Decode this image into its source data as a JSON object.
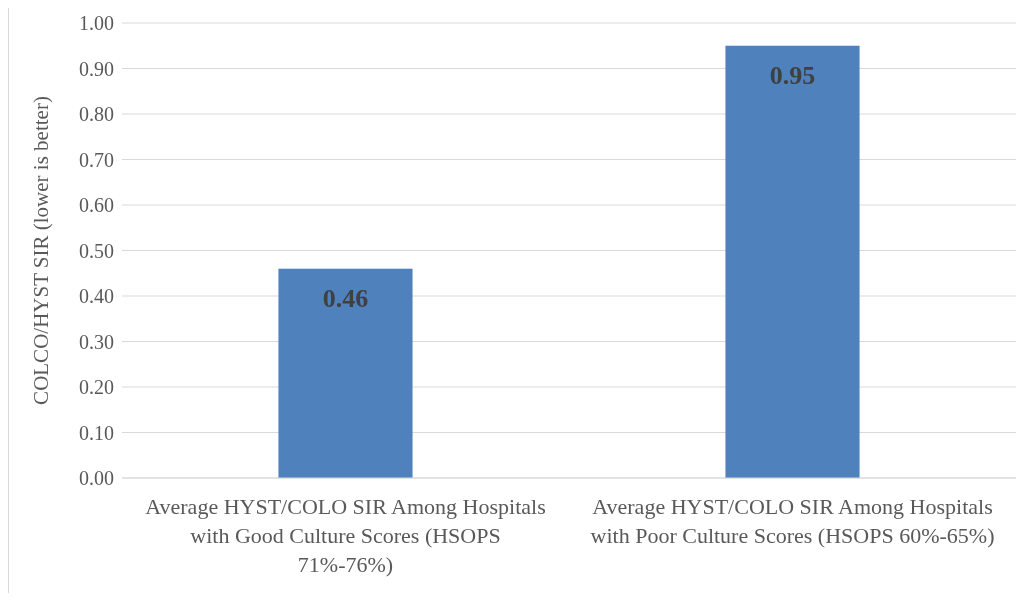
{
  "chart_data": {
    "type": "bar",
    "ylabel": "COLCO/HYST SIR (lower is better)",
    "categories": [
      "Average HYST/COLO SIR Among Hospitals with Good Culture Scores (HSOPS 71%-76%)",
      "Average HYST/COLO SIR Among Hospitals with Poor Culture Scores (HSOPS 60%-65%)"
    ],
    "values": [
      0.46,
      0.95
    ],
    "color": "#4f81bd",
    "data_labels": true,
    "ylim": [
      0,
      1
    ],
    "yticks": [
      {
        "value": 0,
        "label": "0.00"
      },
      {
        "value": 0.1,
        "label": "0.10"
      },
      {
        "value": 0.2,
        "label": "0.20"
      },
      {
        "value": 0.3,
        "label": "0.30"
      },
      {
        "value": 0.4,
        "label": "0.40"
      },
      {
        "value": 0.5,
        "label": "0.50"
      },
      {
        "value": 0.6,
        "label": "0.60"
      },
      {
        "value": 0.7,
        "label": "0.70"
      },
      {
        "value": 0.8,
        "label": "0.80"
      },
      {
        "value": 0.9,
        "label": "0.90"
      },
      {
        "value": 1,
        "label": "1.00"
      }
    ],
    "grid": "y"
  }
}
